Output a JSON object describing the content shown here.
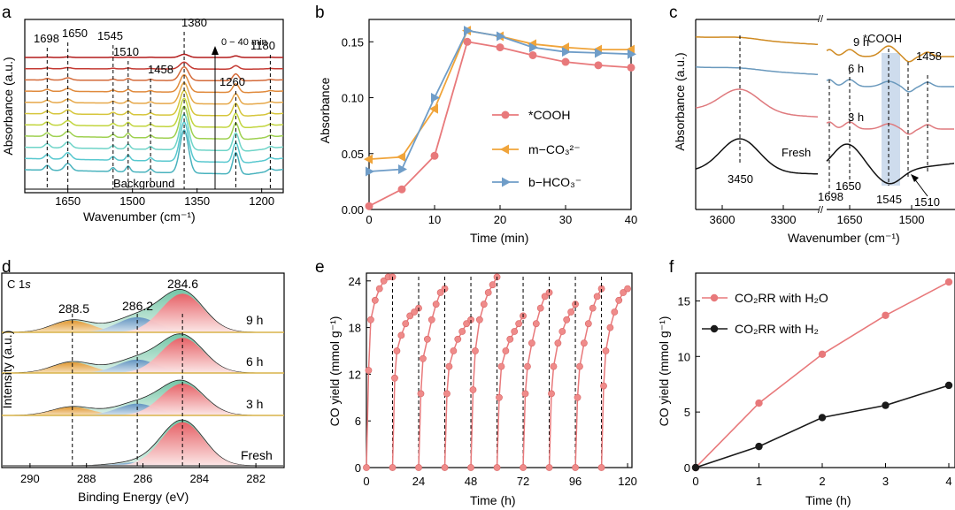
{
  "panels": {
    "a": {
      "letter": "a",
      "xlabel": "Wavenumber (cm⁻¹)",
      "ylabel": "Absorbance (a.u.)",
      "xticks": [
        "1650",
        "1500",
        "1350",
        "1200"
      ],
      "peaks": [
        "1698",
        "1650",
        "1545",
        "1510",
        "1458",
        "1380",
        "1260",
        "1180"
      ],
      "time_note": "0 − 40 min",
      "background_label": "Background"
    },
    "b": {
      "letter": "b",
      "xlabel": "Time (min)",
      "ylabel": "Absorbance",
      "xticks": [
        "0",
        "10",
        "20",
        "30",
        "40"
      ],
      "yticks": [
        "0.00",
        "0.05",
        "0.10",
        "0.15"
      ],
      "legend": [
        "*COOH",
        "m−CO₃²⁻",
        "b−HCO₃⁻"
      ]
    },
    "c": {
      "letter": "c",
      "xlabel": "Wavenumber (cm⁻¹)",
      "ylabel": "Absorbance (a.u.)",
      "xticks": [
        "3600",
        "3300",
        "1650",
        "1500"
      ],
      "curve_labels": [
        "9 h",
        "6 h",
        "3 h",
        "Fresh"
      ],
      "peaks": [
        "3450",
        "1698",
        "1650",
        "1545",
        "1510",
        "1458"
      ],
      "cooh_label": "*COOH"
    },
    "d": {
      "letter": "d",
      "element_label": "C 1s",
      "xlabel": "Binding Energy (eV)",
      "ylabel": "Intensity (a.u.)",
      "xticks": [
        "290",
        "288",
        "286",
        "284",
        "282"
      ],
      "peaks": [
        "288.5",
        "286.2",
        "284.6"
      ],
      "sample_labels": [
        "9 h",
        "6 h",
        "3 h",
        "Fresh"
      ]
    },
    "e": {
      "letter": "e",
      "xlabel": "Time (h)",
      "ylabel": "CO yield (mmol g⁻¹)",
      "xticks": [
        "0",
        "24",
        "48",
        "72",
        "96",
        "120"
      ],
      "yticks": [
        "0",
        "6",
        "12",
        "18",
        "24"
      ]
    },
    "f": {
      "letter": "f",
      "xlabel": "Time (h)",
      "ylabel": "CO yield (mmol g⁻¹)",
      "xticks": [
        "0",
        "1",
        "2",
        "3",
        "4"
      ],
      "yticks": [
        "0",
        "5",
        "10",
        "15"
      ],
      "legend": [
        "CO₂RR with H₂O",
        "CO₂RR with H₂"
      ]
    }
  },
  "colors": {
    "cooh": "#e8797b",
    "carbonate": "#f0a43a",
    "bicarbonate": "#6f9dc8",
    "h2o": "#e8797b",
    "h2": "#1a1a1a"
  },
  "chart_data": [
    {
      "panel": "a",
      "type": "line",
      "title": "",
      "xlabel": "Wavenumber (cm⁻¹)",
      "ylabel": "Absorbance (a.u.)",
      "xlim": [
        1750,
        1150
      ],
      "x_reversed": true,
      "peak_positions": [
        1698,
        1650,
        1545,
        1510,
        1458,
        1380,
        1260,
        1180
      ],
      "series_count": 11,
      "annotation": "0 − 40 min",
      "baseline": "Background"
    },
    {
      "panel": "b",
      "type": "line",
      "title": "",
      "xlabel": "Time (min)",
      "ylabel": "Absorbance",
      "xlim": [
        0,
        40
      ],
      "ylim": [
        0,
        0.17
      ],
      "series": [
        {
          "name": "*COOH",
          "x": [
            0,
            5,
            10,
            15,
            20,
            25,
            30,
            35,
            40
          ],
          "values": [
            0.003,
            0.018,
            0.048,
            0.15,
            0.145,
            0.138,
            0.132,
            0.129,
            0.127
          ]
        },
        {
          "name": "m−CO₃²⁻",
          "x": [
            0,
            5,
            10,
            15,
            20,
            25,
            30,
            35,
            40
          ],
          "values": [
            0.045,
            0.047,
            0.09,
            0.16,
            0.155,
            0.148,
            0.145,
            0.143,
            0.143
          ]
        },
        {
          "name": "b−HCO₃⁻",
          "x": [
            0,
            5,
            10,
            15,
            20,
            25,
            30,
            35,
            40
          ],
          "values": [
            0.034,
            0.036,
            0.1,
            0.16,
            0.155,
            0.145,
            0.141,
            0.14,
            0.139
          ]
        }
      ]
    },
    {
      "panel": "c",
      "type": "line",
      "title": "",
      "xlabel": "Wavenumber (cm⁻¹)",
      "ylabel": "Absorbance (a.u.)",
      "axis_break": true,
      "curves": [
        "9 h",
        "6 h",
        "3 h",
        "Fresh"
      ],
      "peak_positions": [
        3450,
        1698,
        1650,
        1545,
        1510,
        1458
      ],
      "highlight": "*COOH"
    },
    {
      "panel": "d",
      "type": "area",
      "title": "",
      "xlabel": "Binding Energy (eV)",
      "ylabel": "Intensity (a.u.)",
      "xlim": [
        291,
        281
      ],
      "x_reversed": true,
      "components": [
        288.5,
        286.2,
        284.6
      ],
      "samples": [
        "9 h",
        "6 h",
        "3 h",
        "Fresh"
      ]
    },
    {
      "panel": "e",
      "type": "scatter",
      "title": "",
      "xlabel": "Time (h)",
      "ylabel": "CO yield (mmol g⁻¹)",
      "xlim": [
        0,
        122
      ],
      "ylim": [
        0,
        25
      ],
      "cycle_starts": [
        0,
        12,
        24,
        36,
        48,
        60,
        72,
        84,
        96,
        108
      ],
      "cycle_offsets_h": [
        0,
        1,
        2,
        4,
        6,
        8,
        10,
        12
      ],
      "cycles": [
        [
          0,
          12.5,
          19,
          21.5,
          23,
          24,
          24.5,
          24.5
        ],
        [
          0,
          11.5,
          15,
          17,
          18.5,
          19.5,
          20,
          20.5
        ],
        [
          0,
          9.5,
          14,
          16.5,
          19,
          21,
          22.5,
          23
        ],
        [
          0,
          9.5,
          13,
          15,
          16.5,
          17.5,
          18.5,
          19
        ],
        [
          0,
          10,
          15,
          19,
          21,
          22.5,
          23.5,
          24.5
        ],
        [
          0,
          9,
          13,
          15,
          16.5,
          17.5,
          18.5,
          19.5
        ],
        [
          0,
          9.5,
          13,
          16,
          18.5,
          20.5,
          22,
          22.5
        ],
        [
          0,
          9.5,
          13,
          16,
          17.5,
          19,
          20,
          21
        ],
        [
          0,
          9,
          13,
          16,
          18.5,
          20.5,
          22,
          23
        ],
        [
          0,
          10.5,
          15,
          18,
          20,
          21.5,
          22.5,
          23
        ]
      ]
    },
    {
      "panel": "f",
      "type": "line",
      "title": "",
      "xlabel": "Time (h)",
      "ylabel": "CO yield (mmol g⁻¹)",
      "xlim": [
        0,
        4
      ],
      "ylim": [
        0,
        17.5
      ],
      "categories": [
        0,
        1,
        2,
        3,
        4
      ],
      "series": [
        {
          "name": "CO₂RR with H₂O",
          "values": [
            0,
            5.8,
            10.2,
            13.7,
            16.7
          ]
        },
        {
          "name": "CO₂RR with H₂",
          "values": [
            0,
            1.9,
            4.5,
            5.6,
            7.4
          ]
        }
      ]
    }
  ]
}
